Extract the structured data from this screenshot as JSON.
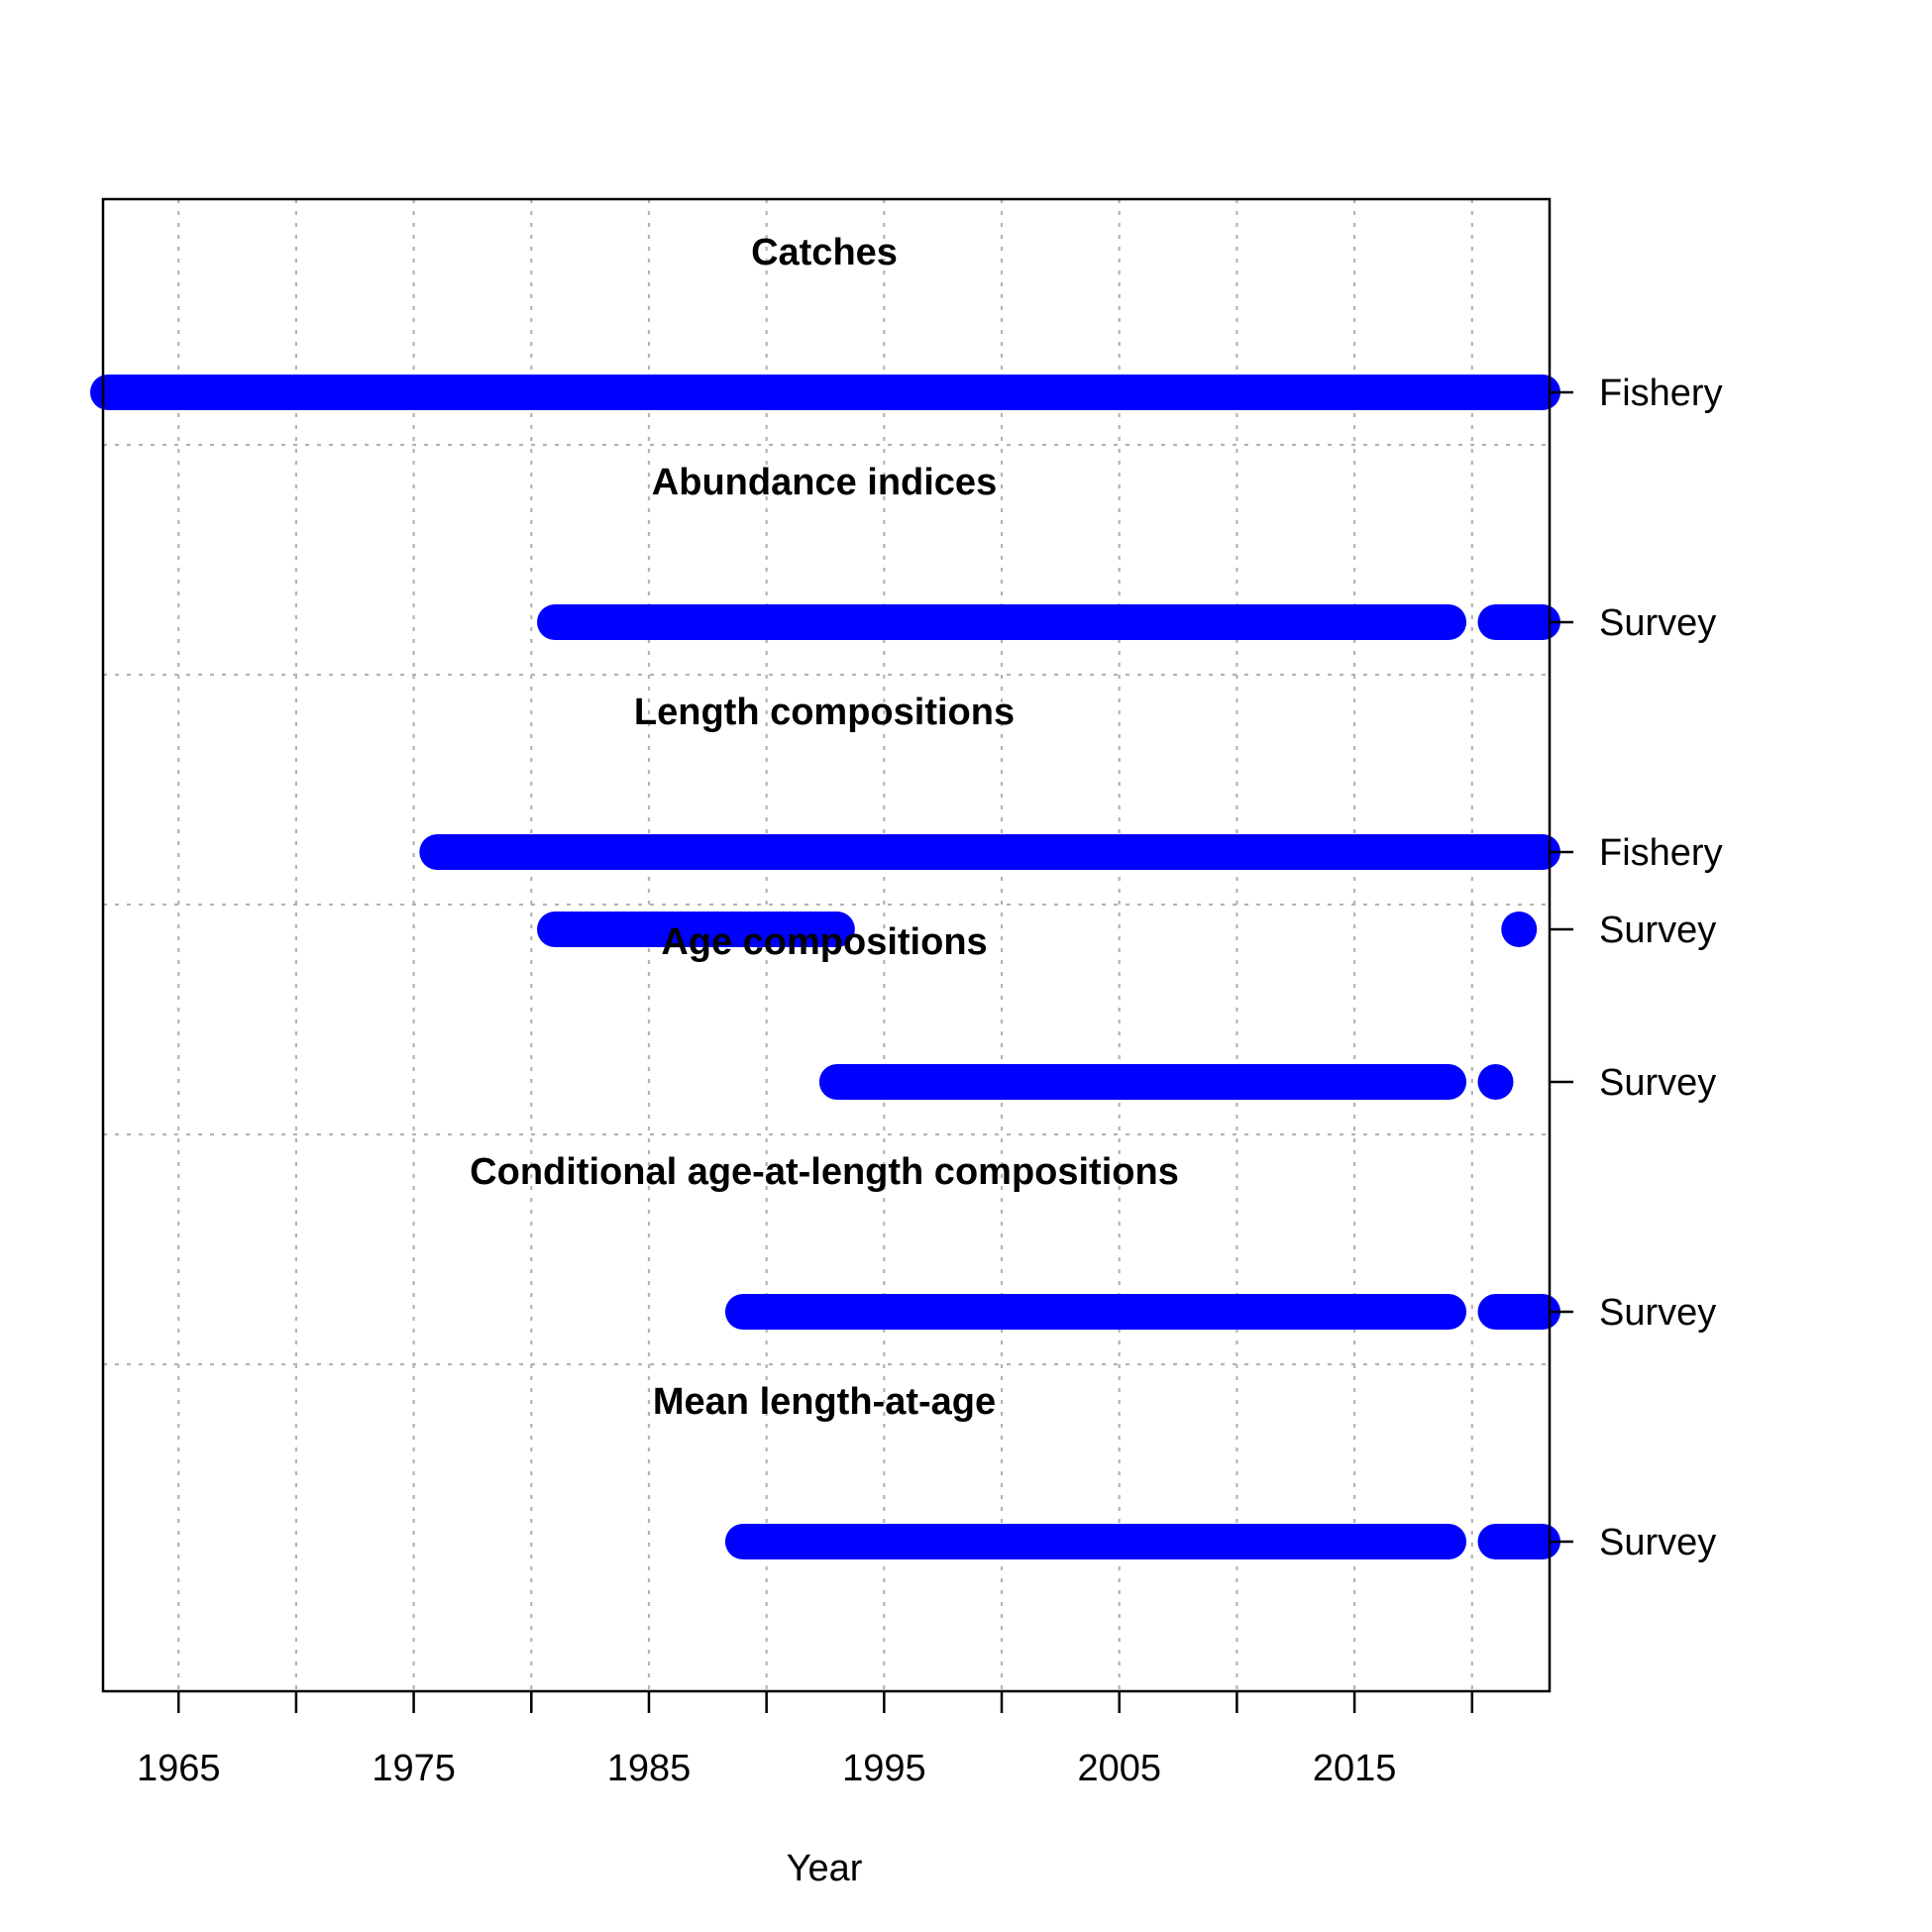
{
  "chart_data": {
    "type": "timeline",
    "xlabel": "Year",
    "xlim": [
      1962,
      2023
    ],
    "x_ticks": [
      1965,
      1970,
      1975,
      1980,
      1985,
      1990,
      1995,
      2000,
      2005,
      2010,
      2015,
      2020
    ],
    "x_tick_labels": [
      "1965",
      "",
      "1975",
      "",
      "1985",
      "",
      "1995",
      "",
      "2005",
      "",
      "2015",
      ""
    ],
    "grid": true,
    "bar_color": "#0000ff",
    "sections": [
      {
        "title": "Catches",
        "rows": [
          {
            "label": "Fishery",
            "years": [
              1962,
              2023
            ]
          }
        ]
      },
      {
        "title": "Abundance indices",
        "rows": [
          {
            "label": "Survey",
            "years": [
              1981,
              2019,
              2021,
              2023
            ]
          }
        ]
      },
      {
        "title": "Length compositions",
        "rows": [
          {
            "label": "Fishery",
            "years": [
              1976,
              2023
            ]
          },
          {
            "label": "Survey",
            "years": [
              1981,
              1993,
              2022,
              2022
            ]
          }
        ]
      },
      {
        "title": "Age compositions",
        "rows": [
          {
            "label": "Survey",
            "years": [
              1993,
              2019,
              2021,
              2021
            ]
          }
        ]
      },
      {
        "title": "Conditional age-at-length compositions",
        "rows": [
          {
            "label": "Survey",
            "years": [
              1989,
              2019,
              2021,
              2023
            ]
          }
        ]
      },
      {
        "title": "Mean length-at-age",
        "rows": [
          {
            "label": "Survey",
            "years": [
              1989,
              2019,
              2021,
              2023
            ]
          }
        ]
      }
    ]
  }
}
